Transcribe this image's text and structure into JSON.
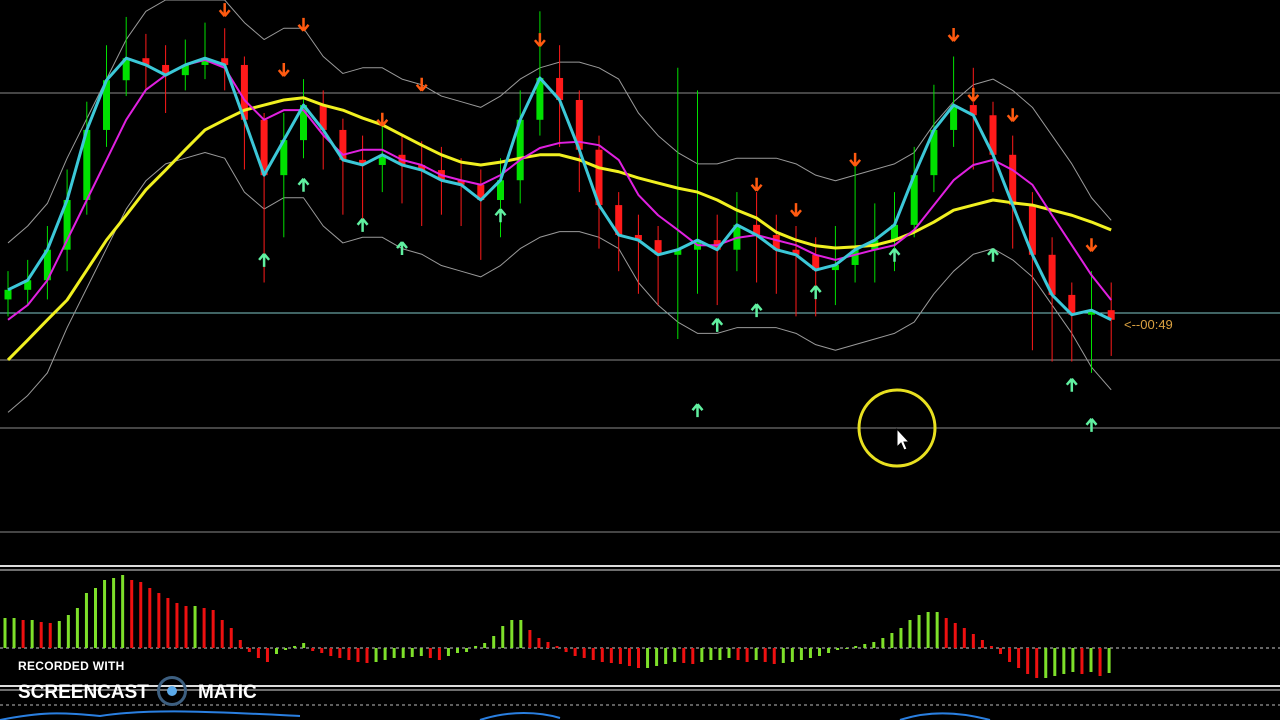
{
  "chart_data": {
    "type": "candlestick",
    "title": "",
    "grid": true,
    "colors": {
      "bull": "#00e000",
      "bear": "#ff1a1a",
      "fast_ma": "#3cc8d8",
      "mid_ma": "#e020e0",
      "slow_ma": "#f0f020",
      "bands": "#9a9a9a",
      "sell_arrow": "#ff5a10",
      "buy_arrow": "#60f0a0",
      "hist_up": "#7ee02a",
      "hist_down": "#ee1010",
      "timer": "#d9a040"
    },
    "candles": [
      [
        47,
        48.7,
        52,
        44
      ],
      [
        48.7,
        50.4,
        54,
        46
      ],
      [
        50.4,
        55.8,
        60,
        47
      ],
      [
        55.8,
        64.6,
        70,
        52
      ],
      [
        64.6,
        77.0,
        82,
        62
      ],
      [
        77.0,
        85.8,
        92,
        74
      ],
      [
        85.8,
        89.7,
        97,
        83
      ],
      [
        89.7,
        88.5,
        94,
        84
      ],
      [
        88.5,
        86.7,
        92,
        80
      ],
      [
        86.7,
        88.5,
        93,
        84
      ],
      [
        88.5,
        89.7,
        96,
        86
      ],
      [
        89.7,
        88.5,
        95,
        84
      ],
      [
        88.5,
        78.8,
        90,
        70
      ],
      [
        78.8,
        69.0,
        80,
        50
      ],
      [
        69.0,
        75.2,
        80,
        58
      ],
      [
        75.2,
        81.4,
        86,
        72
      ],
      [
        81.4,
        77.0,
        84,
        70
      ],
      [
        77.0,
        71.7,
        79,
        62
      ],
      [
        71.7,
        70.8,
        76,
        60
      ],
      [
        70.8,
        72.6,
        78,
        66
      ],
      [
        72.6,
        70.8,
        76,
        64
      ],
      [
        70.8,
        69.9,
        75,
        60
      ],
      [
        69.9,
        68.1,
        74,
        62
      ],
      [
        68.1,
        67.3,
        72,
        60
      ],
      [
        67.3,
        64.6,
        70,
        54
      ],
      [
        64.6,
        68.1,
        72,
        58
      ],
      [
        68.1,
        78.8,
        84,
        64
      ],
      [
        78.8,
        86.2,
        98,
        76
      ],
      [
        86.2,
        82.3,
        92,
        74
      ],
      [
        82.3,
        73.5,
        84,
        66
      ],
      [
        73.5,
        63.7,
        76,
        56
      ],
      [
        63.7,
        58.4,
        66,
        52
      ],
      [
        58.4,
        57.5,
        62,
        48
      ],
      [
        57.5,
        54.9,
        60,
        46
      ],
      [
        54.9,
        55.8,
        88,
        40
      ],
      [
        55.8,
        57.5,
        84,
        48
      ],
      [
        57.5,
        55.8,
        62,
        46
      ],
      [
        55.8,
        60.2,
        66,
        52
      ],
      [
        60.2,
        58.4,
        66,
        50
      ],
      [
        58.4,
        55.8,
        62,
        48
      ],
      [
        55.8,
        54.9,
        60,
        44
      ],
      [
        54.9,
        52.2,
        58,
        44
      ],
      [
        52.2,
        53.1,
        60,
        46
      ],
      [
        53.1,
        55.8,
        72,
        50
      ],
      [
        55.8,
        57.5,
        64,
        50
      ],
      [
        57.5,
        60.2,
        66,
        52
      ],
      [
        60.2,
        69.0,
        74,
        58
      ],
      [
        69.0,
        77.0,
        85,
        66
      ],
      [
        77.0,
        81.4,
        90,
        74
      ],
      [
        81.4,
        79.6,
        88,
        70
      ],
      [
        79.6,
        72.6,
        82,
        66
      ],
      [
        72.6,
        63.7,
        76,
        56
      ],
      [
        63.7,
        54.9,
        66,
        38
      ],
      [
        54.9,
        47.8,
        58,
        36
      ],
      [
        47.8,
        44.3,
        50,
        36
      ],
      [
        44.3,
        45.1,
        52,
        34
      ],
      [
        45.1,
        43.4,
        50,
        37
      ]
    ],
    "fast_ma": [
      48.7,
      50.4,
      55.8,
      64.6,
      77.0,
      85.8,
      89.7,
      88.5,
      86.7,
      88.5,
      89.7,
      88.5,
      78.8,
      69.0,
      75.2,
      81.4,
      77.0,
      71.7,
      70.8,
      72.6,
      70.8,
      69.9,
      68.1,
      67.3,
      64.6,
      68.1,
      78.8,
      86.2,
      82.3,
      73.5,
      63.7,
      58.4,
      57.5,
      54.9,
      55.8,
      57.5,
      55.8,
      60.2,
      58.4,
      55.8,
      54.9,
      52.2,
      53.1,
      55.8,
      57.5,
      60.2,
      69.0,
      77.0,
      81.4,
      79.6,
      72.6,
      63.7,
      54.9,
      47.8,
      44.3,
      45.1,
      43.4
    ],
    "mid_ma": [
      43.4,
      46.0,
      50.4,
      57.5,
      64.6,
      71.7,
      78.8,
      84.1,
      86.7,
      88.5,
      89.4,
      88.0,
      82.3,
      78.8,
      80.5,
      80.5,
      76.1,
      72.6,
      73.5,
      73.5,
      71.7,
      70.8,
      69.0,
      68.1,
      67.3,
      69.0,
      71.7,
      73.8,
      74.7,
      74.9,
      74.3,
      71.7,
      65.5,
      61.9,
      59.3,
      56.6,
      56.6,
      57.9,
      58.4,
      57.5,
      56.6,
      54.9,
      54.0,
      54.9,
      55.8,
      56.6,
      59.3,
      63.7,
      68.1,
      70.8,
      71.7,
      69.9,
      67.3,
      61.9,
      56.6,
      51.3,
      46.9
    ],
    "slow_ma": [
      36.3,
      39.8,
      43.4,
      46.9,
      52.2,
      57.5,
      61.9,
      66.4,
      69.9,
      73.5,
      77.0,
      78.8,
      80.5,
      81.4,
      82.3,
      82.7,
      81.4,
      80.5,
      79.1,
      77.9,
      76.1,
      74.3,
      72.6,
      71.3,
      70.8,
      71.3,
      72.0,
      72.6,
      72.6,
      71.7,
      70.3,
      69.6,
      68.5,
      67.6,
      66.7,
      66.0,
      64.6,
      62.8,
      61.4,
      58.9,
      57.5,
      56.5,
      56.1,
      56.3,
      56.6,
      57.5,
      58.9,
      60.7,
      62.8,
      63.7,
      64.6,
      64.1,
      63.7,
      62.8,
      61.9,
      60.7,
      59.3
    ],
    "band_upper": [
      57,
      60,
      64,
      72,
      79,
      86,
      93,
      98,
      100,
      100,
      100,
      100,
      96,
      93,
      95,
      95,
      90,
      87,
      88,
      88,
      86,
      85,
      83,
      82,
      81,
      83,
      86,
      88,
      89,
      89,
      88,
      86,
      80,
      76,
      73,
      71,
      71,
      72,
      72,
      72,
      71,
      69,
      68,
      69,
      70,
      71,
      73,
      78,
      82,
      85,
      86,
      84,
      81,
      76,
      71,
      65,
      61
    ],
    "band_lower": [
      27,
      30,
      34,
      42,
      49,
      56,
      63,
      68,
      71,
      72,
      73,
      72,
      66,
      63,
      65,
      65,
      60,
      57,
      58,
      58,
      56,
      55,
      53,
      52,
      51,
      53,
      56,
      58,
      59,
      59,
      58,
      56,
      50,
      46,
      43,
      41,
      41,
      42,
      42,
      42,
      41,
      39,
      38,
      39,
      40,
      41,
      43,
      48,
      52,
      55,
      56,
      54,
      51,
      46,
      41,
      35,
      31
    ],
    "sell_arrows": [
      [
        11,
        98.2
      ],
      [
        14,
        87.6
      ],
      [
        15,
        95.6
      ],
      [
        19,
        78.8
      ],
      [
        21,
        85.0
      ],
      [
        27,
        92.9
      ],
      [
        38,
        67.3
      ],
      [
        40,
        62.8
      ],
      [
        43,
        71.7
      ],
      [
        48,
        93.8
      ],
      [
        49,
        83.2
      ],
      [
        51,
        79.6
      ],
      [
        55,
        56.6
      ]
    ],
    "buy_arrows": [
      [
        13,
        54.0
      ],
      [
        15,
        67.3
      ],
      [
        18,
        60.2
      ],
      [
        20,
        56.1
      ],
      [
        25,
        61.9
      ],
      [
        35,
        27.4
      ],
      [
        36,
        42.5
      ],
      [
        38,
        45.1
      ],
      [
        41,
        48.3
      ],
      [
        45,
        54.9
      ],
      [
        50,
        54.9
      ],
      [
        54,
        31.9
      ],
      [
        55,
        24.8
      ]
    ],
    "histogram": [
      30,
      30,
      28,
      28,
      26,
      25,
      27,
      33,
      40,
      55,
      60,
      68,
      70,
      73,
      68,
      66,
      60,
      55,
      50,
      45,
      42,
      42,
      40,
      38,
      28,
      20,
      8,
      -4,
      -10,
      -14,
      -6,
      -2,
      2,
      5,
      -3,
      -5,
      -8,
      -10,
      -12,
      -14,
      -15,
      -14,
      -12,
      -10,
      -10,
      -9,
      -8,
      -10,
      -12,
      -8,
      -5,
      -4,
      2,
      5,
      12,
      22,
      28,
      28,
      18,
      10,
      6,
      2,
      -4,
      -8,
      -10,
      -12,
      -14,
      -15,
      -16,
      -18,
      -20,
      -20,
      -18,
      -16,
      -14,
      -15,
      -16,
      -14,
      -12,
      -12,
      -10,
      -12,
      -14,
      -12,
      -14,
      -16,
      -15,
      -14,
      -12,
      -10,
      -8,
      -5,
      -2,
      0,
      2,
      4,
      6,
      10,
      15,
      20,
      28,
      33,
      36,
      36,
      30,
      25,
      20,
      14,
      8,
      2,
      -6,
      -14,
      -20,
      -26,
      -30,
      -30,
      -28,
      -26,
      -24,
      -26,
      -24,
      -28,
      -25
    ],
    "timer_label": "<--00:49"
  },
  "watermark": {
    "line1": "RECORDED WITH",
    "brand_left": "SCREENCAST",
    "brand_right": "MATIC"
  }
}
